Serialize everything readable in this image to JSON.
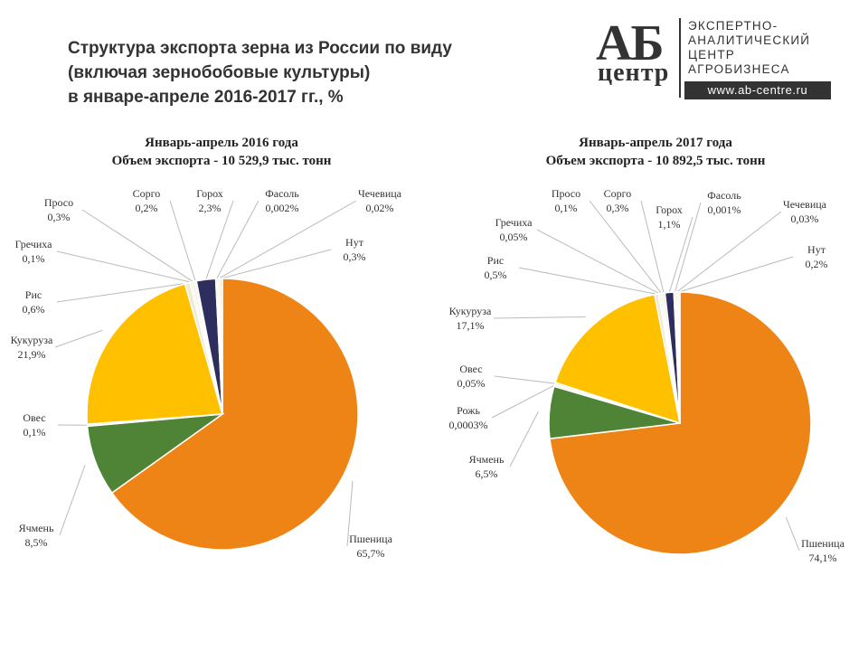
{
  "header": {
    "title_lines": [
      "Структура экспорта зерна из России по виду",
      "(включая зернобобовые культуры)",
      "в январе-апреле 2016-2017 гг., %"
    ]
  },
  "logo": {
    "mark": "АБ",
    "mark_sub": "центр",
    "lines": [
      "ЭКСПЕРТНО-",
      "АНАЛИТИЧЕСКИЙ",
      "ЦЕНТР",
      "АГРОБИЗНЕСА"
    ],
    "url": "www.ab-centre.ru"
  },
  "colors": {
    "wheat": "#ef8416",
    "barley": "#4f8436",
    "corn": "#ffc000",
    "peas": "#2e2e5e",
    "minor": "#f0ead2",
    "leader": "#bbbbbb"
  },
  "chart_data": [
    {
      "type": "pie",
      "title": "Январь-апрель 2016 года",
      "subtitle": "Объем экспорта - 10 529,9 тыс. тонн",
      "slices": [
        {
          "name": "Пшеница",
          "value": 65.7,
          "label": "65,7%",
          "color": "wheat"
        },
        {
          "name": "Ячмень",
          "value": 8.5,
          "label": "8,5%",
          "color": "barley"
        },
        {
          "name": "Овес",
          "value": 0.1,
          "label": "0,1%",
          "color": "minor"
        },
        {
          "name": "Кукуруза",
          "value": 21.9,
          "label": "21,9%",
          "color": "corn"
        },
        {
          "name": "Рис",
          "value": 0.6,
          "label": "0,6%",
          "color": "minor"
        },
        {
          "name": "Гречиха",
          "value": 0.1,
          "label": "0,1%",
          "color": "minor"
        },
        {
          "name": "Просо",
          "value": 0.3,
          "label": "0,3%",
          "color": "minor"
        },
        {
          "name": "Сорго",
          "value": 0.2,
          "label": "0,2%",
          "color": "minor"
        },
        {
          "name": "Горох",
          "value": 2.3,
          "label": "2,3%",
          "color": "peas"
        },
        {
          "name": "Фасоль",
          "value": 0.002,
          "label": "0,002%",
          "color": "minor"
        },
        {
          "name": "Чечевица",
          "value": 0.02,
          "label": "0,02%",
          "color": "minor"
        },
        {
          "name": "Нут",
          "value": 0.3,
          "label": "0,3%",
          "color": "minor"
        }
      ]
    },
    {
      "type": "pie",
      "title": "Январь-апрель 2017 года",
      "subtitle": "Объем экспорта - 10 892,5 тыс. тонн",
      "slices": [
        {
          "name": "Пшеница",
          "value": 74.1,
          "label": "74,1%",
          "color": "wheat"
        },
        {
          "name": "Ячмень",
          "value": 6.5,
          "label": "6,5%",
          "color": "barley"
        },
        {
          "name": "Рожь",
          "value": 0.0003,
          "label": "0,0003%",
          "color": "minor"
        },
        {
          "name": "Овес",
          "value": 0.05,
          "label": "0,05%",
          "color": "minor"
        },
        {
          "name": "Кукуруза",
          "value": 17.1,
          "label": "17,1%",
          "color": "corn"
        },
        {
          "name": "Рис",
          "value": 0.5,
          "label": "0,5%",
          "color": "minor"
        },
        {
          "name": "Гречиха",
          "value": 0.05,
          "label": "0,05%",
          "color": "minor"
        },
        {
          "name": "Просо",
          "value": 0.1,
          "label": "0,1%",
          "color": "minor"
        },
        {
          "name": "Сорго",
          "value": 0.3,
          "label": "0,3%",
          "color": "minor"
        },
        {
          "name": "Горох",
          "value": 1.1,
          "label": "1,1%",
          "color": "peas"
        },
        {
          "name": "Фасоль",
          "value": 0.001,
          "label": "0,001%",
          "color": "minor"
        },
        {
          "name": "Чечевица",
          "value": 0.03,
          "label": "0,03%",
          "color": "minor"
        },
        {
          "name": "Нут",
          "value": 0.2,
          "label": "0,2%",
          "color": "minor"
        }
      ]
    }
  ]
}
